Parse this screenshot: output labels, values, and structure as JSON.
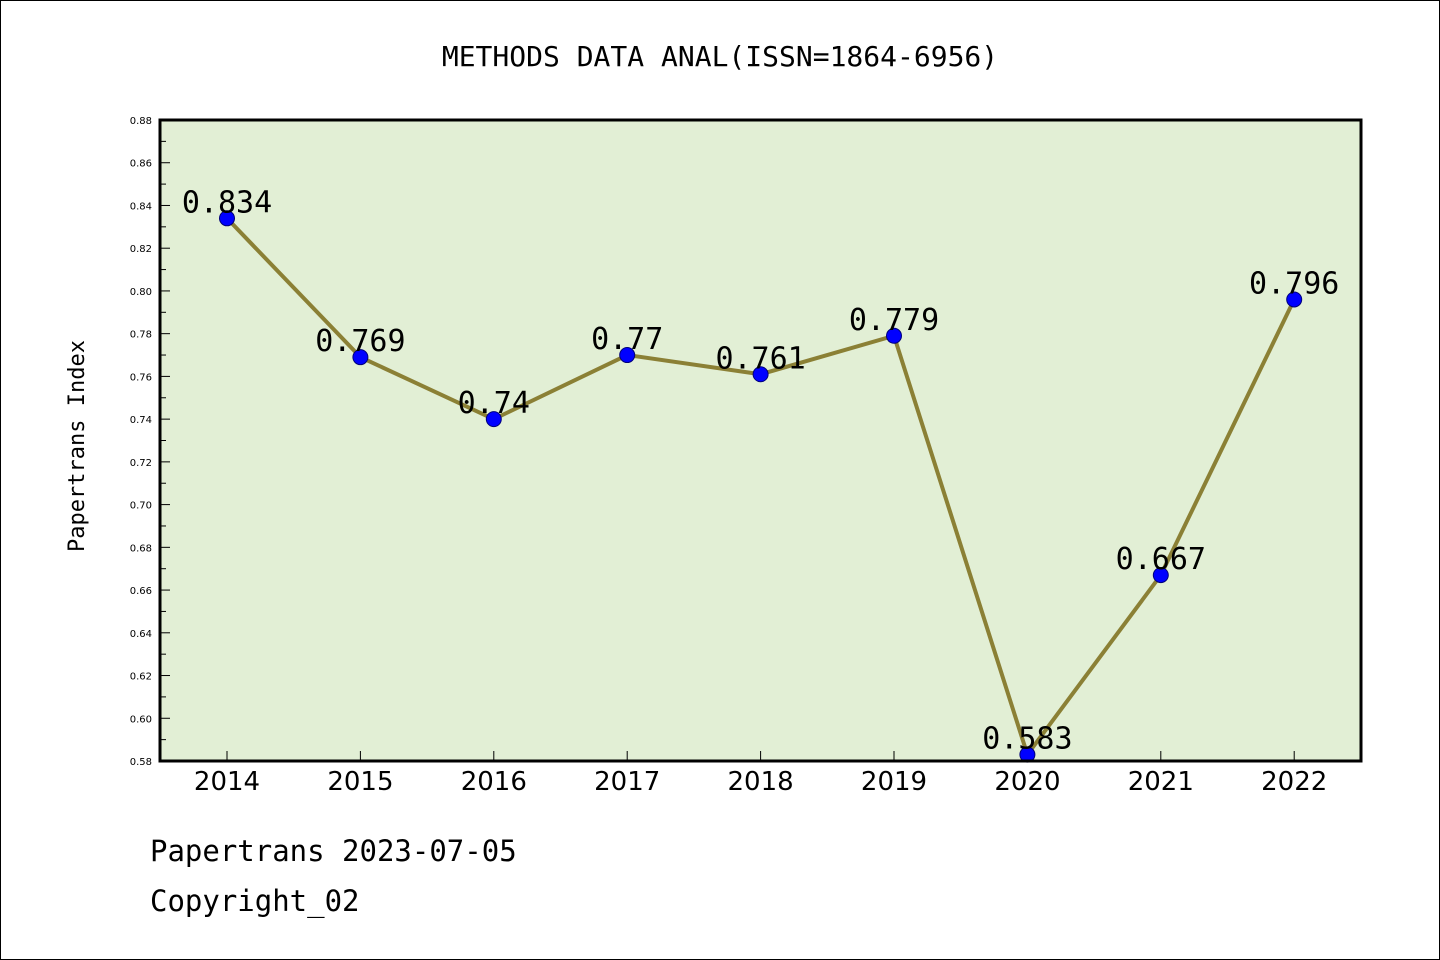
{
  "chart_data": {
    "type": "line",
    "title": "METHODS DATA ANAL(ISSN=1864-6956)",
    "xlabel": "",
    "ylabel": "Papertrans Index",
    "categories": [
      "2014",
      "2015",
      "2016",
      "2017",
      "2018",
      "2019",
      "2020",
      "2021",
      "2022"
    ],
    "series": [
      {
        "values": [
          0.834,
          0.769,
          0.74,
          0.77,
          0.761,
          0.779,
          0.583,
          0.667,
          0.796
        ],
        "data_labels": [
          "0.834",
          "0.769",
          "0.74",
          "0.77",
          "0.761",
          "0.779",
          "0.583",
          "0.667",
          "0.796"
        ],
        "line_color": "#8b8035",
        "marker_color": "#0000ff"
      }
    ],
    "ylim": [
      0.58,
      0.88
    ],
    "ytick_labels": [
      "0.58",
      "0.60",
      "0.62",
      "0.64",
      "0.66",
      "0.68",
      "0.70",
      "0.72",
      "0.74",
      "0.76",
      "0.78",
      "0.80",
      "0.82",
      "0.84",
      "0.86",
      "0.88"
    ],
    "plot_background": "#e2efd5",
    "grid": false,
    "legend": "none"
  },
  "footer": {
    "date_line": "Papertrans 2023-07-05",
    "copyright_line": "Copyright_02"
  }
}
